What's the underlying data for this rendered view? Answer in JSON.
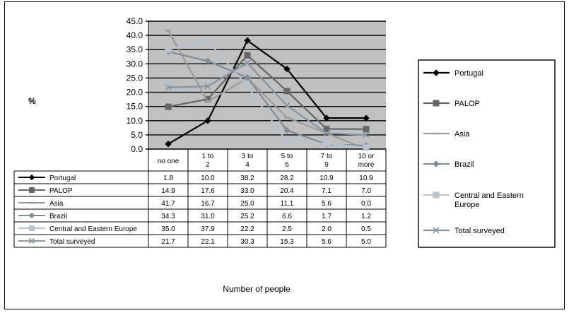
{
  "chart_data": {
    "type": "line",
    "ylabel": "%",
    "xlabel": "Number of people",
    "ylim": [
      0,
      45
    ],
    "yticks": [
      "0.0",
      "5.0",
      "10.0",
      "15.0",
      "20.0",
      "25.0",
      "30.0",
      "35.0",
      "40.0",
      "45.0"
    ],
    "categories": [
      "no one",
      "1 to 2",
      "3 to 4",
      "5 to 6",
      "7 to 9",
      "10 or more"
    ],
    "grid": true,
    "legend_position": "right",
    "series": [
      {
        "name": "Portugal",
        "values": [
          1.8,
          10.0,
          38.2,
          28.2,
          10.9,
          10.9
        ],
        "value_labels": [
          "1.8",
          "10.0",
          "38.2",
          "28.2",
          "10.9",
          "10.9"
        ],
        "color": "#000000",
        "marker": "diamond"
      },
      {
        "name": "PALOP",
        "values": [
          14.9,
          17.6,
          33.0,
          20.4,
          7.1,
          7.0
        ],
        "value_labels": [
          "14.9",
          "17.6",
          "33.0",
          "20.4",
          "7.1",
          "7.0"
        ],
        "color": "#666666",
        "marker": "square"
      },
      {
        "name": "Asia",
        "values": [
          41.7,
          16.7,
          25.0,
          11.1,
          5.6,
          0.0
        ],
        "value_labels": [
          "41.7",
          "16.7",
          "25.0",
          "11.1",
          "5.6",
          "0.0"
        ],
        "color": "#9a9a9a",
        "marker": "dash"
      },
      {
        "name": "Brazil",
        "values": [
          34.3,
          31.0,
          25.2,
          6.6,
          1.7,
          1.2
        ],
        "value_labels": [
          "34.3",
          "31.0",
          "25.2",
          "6.6",
          "1.7",
          "1.2"
        ],
        "color": "#7f8c99",
        "marker": "diamond"
      },
      {
        "name": "Central and Eastern Europe",
        "values": [
          35.0,
          37.9,
          22.2,
          2.5,
          2.0,
          0.5
        ],
        "value_labels": [
          "35.0",
          "37.9",
          "22.2",
          "2.5",
          "2.0",
          "0.5"
        ],
        "color": "#b8c4d0",
        "marker": "square"
      },
      {
        "name": "Total surveyed",
        "values": [
          21.7,
          22.1,
          30.3,
          15.3,
          5.6,
          5.0
        ],
        "value_labels": [
          "21.7",
          "22.1",
          "30.3",
          "15.3",
          "5.6",
          "5.0"
        ],
        "color": "#8595a6",
        "marker": "x"
      }
    ],
    "legend_labels": [
      "Portugal",
      "PALOP",
      "Asia",
      "Brazil",
      "Central and Eastern Europe",
      "Total surveyed"
    ]
  }
}
